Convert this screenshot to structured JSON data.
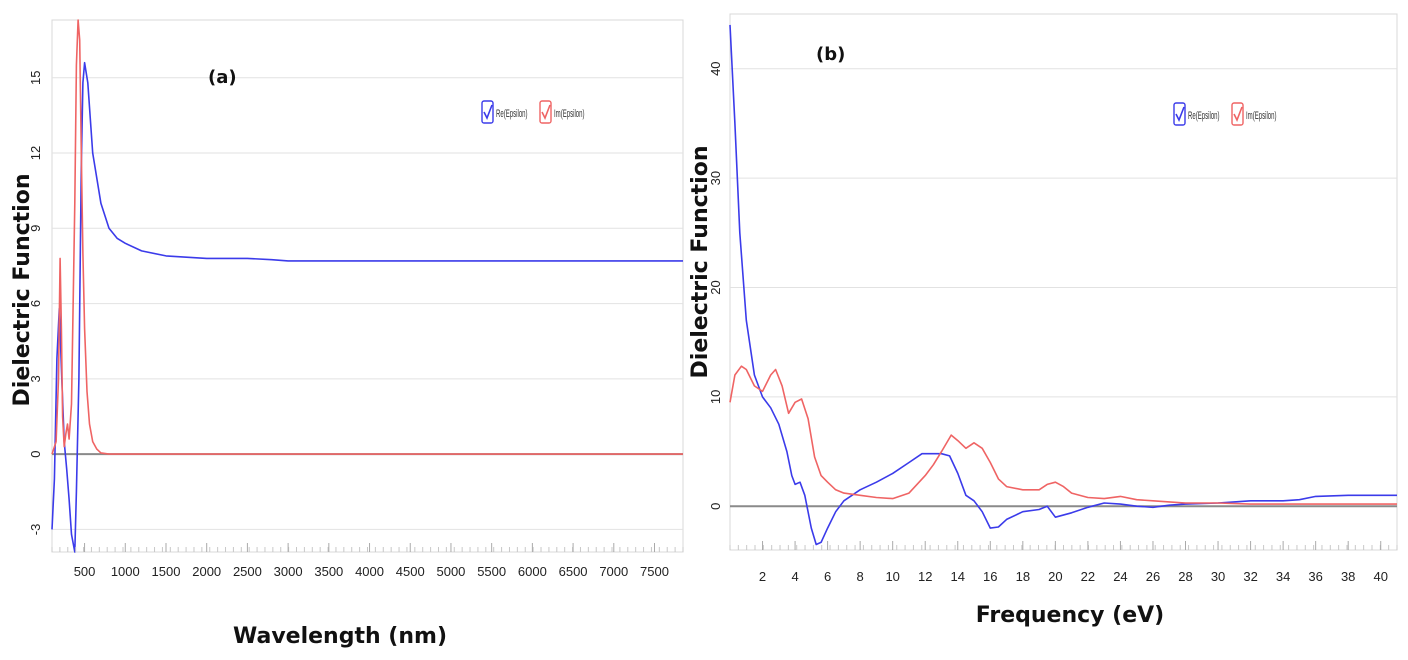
{
  "chart_data": [
    {
      "type": "line",
      "panel_label": "(a)",
      "xlabel": "Wavelength (nm)",
      "ylabel": "Dielectric Function",
      "xlim": [
        100,
        7850
      ],
      "ylim": [
        -3.9,
        17.3
      ],
      "x_ticks": [
        500,
        1000,
        1500,
        2000,
        2500,
        3000,
        3500,
        4000,
        4500,
        5000,
        5500,
        6000,
        6500,
        7000,
        7500
      ],
      "y_ticks": [
        -3,
        0,
        3,
        6,
        9,
        12,
        15
      ],
      "grid": "horizontal",
      "legend_position": "top-right",
      "series": [
        {
          "name": "Re(Epsilon)",
          "color": "#3b3bea",
          "x": [
            100,
            130,
            160,
            190,
            220,
            250,
            280,
            310,
            340,
            380,
            400,
            430,
            460,
            480,
            500,
            540,
            600,
            700,
            800,
            900,
            1000,
            1200,
            1500,
            2000,
            2500,
            2800,
            3000,
            4000,
            5000,
            6000,
            7000,
            7850
          ],
          "y": [
            -3.0,
            -1.0,
            3.8,
            5.8,
            3.0,
            0.5,
            -0.6,
            -1.8,
            -3.2,
            -4.3,
            -1.5,
            3.0,
            11.5,
            14.8,
            15.6,
            14.8,
            12.0,
            10.0,
            9.0,
            8.6,
            8.4,
            8.1,
            7.9,
            7.8,
            7.8,
            7.75,
            7.7,
            7.7,
            7.7,
            7.7,
            7.7,
            7.7
          ]
        },
        {
          "name": "Im(Epsilon)",
          "color": "#ef6464",
          "x": [
            100,
            150,
            180,
            200,
            215,
            230,
            250,
            270,
            290,
            310,
            340,
            380,
            400,
            420,
            440,
            460,
            480,
            500,
            530,
            560,
            600,
            650,
            700,
            800,
            1000,
            2000,
            4000,
            6000,
            7850
          ],
          "y": [
            0.0,
            0.5,
            3.0,
            7.8,
            5.0,
            1.5,
            0.3,
            0.8,
            1.2,
            0.6,
            2.0,
            10.0,
            15.5,
            17.3,
            16.5,
            12.0,
            8.0,
            5.0,
            2.5,
            1.2,
            0.5,
            0.2,
            0.05,
            0.0,
            0.0,
            0.0,
            0.0,
            0.0,
            0.0
          ]
        }
      ],
      "zero_line": 0
    },
    {
      "type": "line",
      "panel_label": "(b)",
      "xlabel": "Frequency (eV)",
      "ylabel": "Dielectric Function",
      "xlim": [
        0,
        41
      ],
      "ylim": [
        -4,
        45
      ],
      "x_ticks": [
        2,
        4,
        6,
        8,
        10,
        12,
        14,
        16,
        18,
        20,
        22,
        24,
        26,
        28,
        30,
        32,
        34,
        36,
        38,
        40
      ],
      "y_ticks": [
        0,
        10,
        20,
        30,
        40
      ],
      "grid": "horizontal",
      "legend_position": "top-right",
      "series": [
        {
          "name": "Re(Epsilon)",
          "color": "#3b3bea",
          "x": [
            0,
            0.3,
            0.6,
            1.0,
            1.5,
            2.0,
            2.5,
            3.0,
            3.5,
            3.8,
            4.0,
            4.3,
            4.6,
            5.0,
            5.3,
            5.6,
            6.0,
            6.5,
            7.0,
            8.0,
            9.0,
            10.0,
            11.0,
            11.8,
            12.5,
            13.0,
            13.5,
            14.0,
            14.5,
            15.0,
            15.5,
            16.0,
            16.5,
            17.0,
            18.0,
            19.0,
            19.5,
            20.0,
            21.0,
            22.0,
            23.0,
            24.0,
            25.0,
            26.0,
            27.0,
            28.0,
            30.0,
            31.0,
            32.0,
            34.0,
            35.0,
            36.0,
            38.0,
            41.0
          ],
          "y": [
            44.0,
            35.0,
            25.0,
            17.0,
            12.0,
            10.0,
            9.0,
            7.5,
            5.0,
            2.8,
            2.0,
            2.2,
            1.0,
            -2.0,
            -3.5,
            -3.3,
            -2.0,
            -0.5,
            0.5,
            1.5,
            2.2,
            3.0,
            4.0,
            4.8,
            4.8,
            4.8,
            4.6,
            3.0,
            1.0,
            0.5,
            -0.5,
            -2.0,
            -1.9,
            -1.2,
            -0.5,
            -0.3,
            0.0,
            -1.0,
            -0.6,
            -0.1,
            0.3,
            0.2,
            0.0,
            -0.1,
            0.1,
            0.2,
            0.3,
            0.4,
            0.5,
            0.5,
            0.6,
            0.9,
            1.0,
            1.0
          ]
        },
        {
          "name": "Im(Epsilon)",
          "color": "#ef6464",
          "x": [
            0,
            0.3,
            0.7,
            1.0,
            1.5,
            2.0,
            2.5,
            2.8,
            3.2,
            3.6,
            4.0,
            4.4,
            4.8,
            5.2,
            5.6,
            6.0,
            6.5,
            7.0,
            8.0,
            9.0,
            10.0,
            11.0,
            12.0,
            12.5,
            13.0,
            13.6,
            14.0,
            14.5,
            15.0,
            15.5,
            16.0,
            16.5,
            17.0,
            18.0,
            19.0,
            19.5,
            20.0,
            20.5,
            21.0,
            22.0,
            23.0,
            24.0,
            25.0,
            26.0,
            27.0,
            28.0,
            30.0,
            32.0,
            35.0,
            38.0,
            41.0
          ],
          "y": [
            9.5,
            12.0,
            12.8,
            12.5,
            11.0,
            10.5,
            12.0,
            12.5,
            11.0,
            8.5,
            9.5,
            9.8,
            8.0,
            4.5,
            2.8,
            2.2,
            1.5,
            1.2,
            1.0,
            0.8,
            0.7,
            1.2,
            2.8,
            3.8,
            5.0,
            6.5,
            6.0,
            5.3,
            5.8,
            5.3,
            4.0,
            2.5,
            1.8,
            1.5,
            1.5,
            2.0,
            2.2,
            1.8,
            1.2,
            0.8,
            0.7,
            0.9,
            0.6,
            0.5,
            0.4,
            0.3,
            0.3,
            0.2,
            0.2,
            0.2,
            0.2
          ]
        }
      ],
      "zero_line": 0
    }
  ]
}
